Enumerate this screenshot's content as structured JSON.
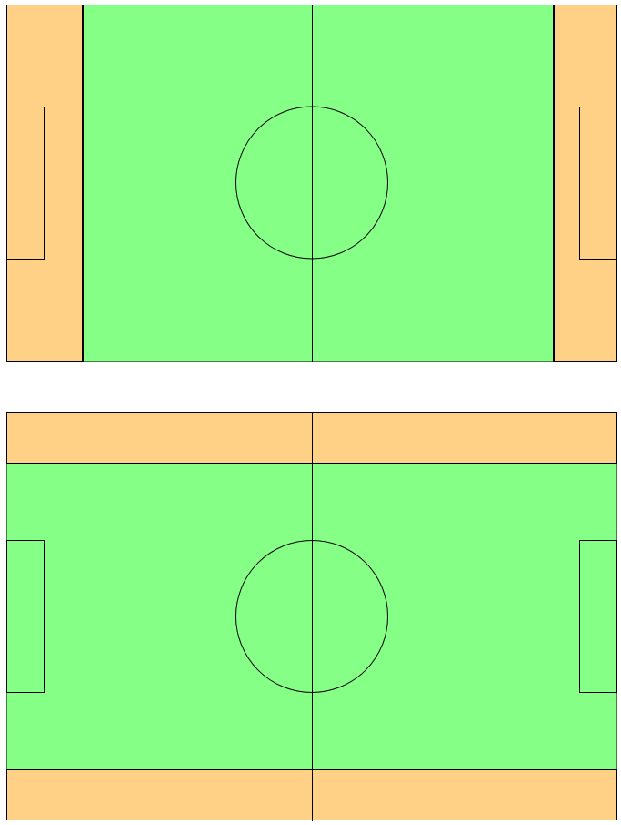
{
  "colors": {
    "pitch": "#85FF85",
    "runoff": "#FFD187",
    "line": "#000000",
    "background": "#FFFFFF"
  },
  "diagrams": [
    {
      "name": "pitch-diagram-1",
      "orientation": "runoff-at-ends"
    },
    {
      "name": "pitch-diagram-2",
      "orientation": "runoff-at-sides"
    }
  ]
}
